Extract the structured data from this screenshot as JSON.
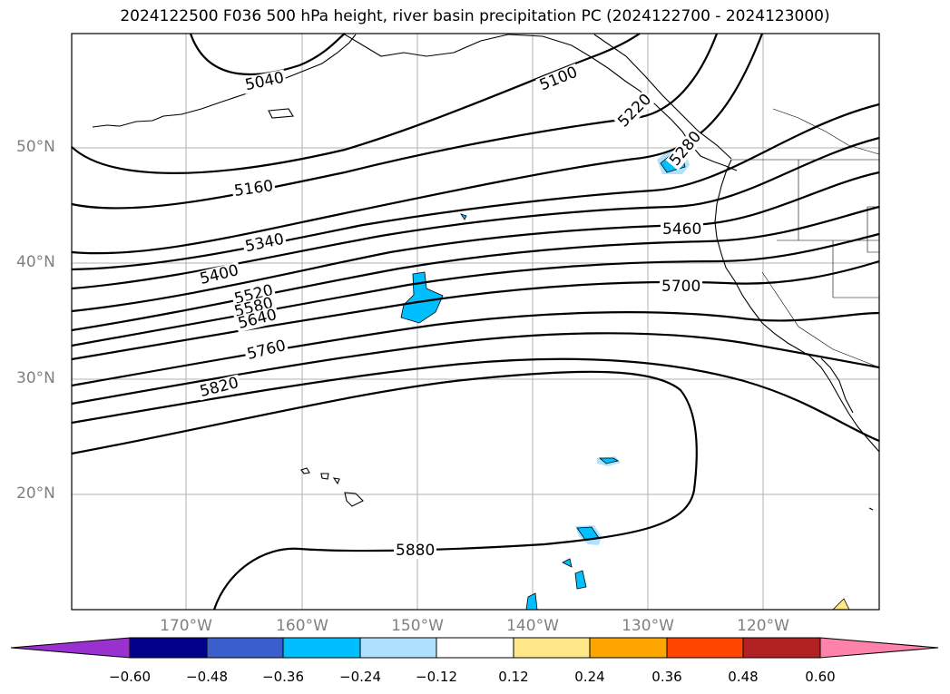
{
  "title": "2024122500 F036 500 hPa height, river basin precipitation PC (2024122700 - 2024123000)",
  "lat_labels": [
    "50°N",
    "40°N",
    "30°N",
    "20°N"
  ],
  "lon_labels": [
    "170°W",
    "160°W",
    "150°W",
    "140°W",
    "130°W",
    "120°W"
  ],
  "contour_labels": [
    "5040",
    "5100",
    "5160",
    "5220",
    "5280",
    "5340",
    "5400",
    "5460",
    "5520",
    "5580",
    "5640",
    "5700",
    "5760",
    "5820",
    "5880"
  ],
  "colorbar": {
    "ticks": [
      "−0.60",
      "−0.48",
      "−0.36",
      "−0.24",
      "−0.12",
      "0.12",
      "0.24",
      "0.36",
      "0.48",
      "0.60"
    ],
    "colors": [
      "#9b30d0",
      "#00008b",
      "#3a5fcd",
      "#00bfff",
      "#b0e2ff",
      "#ffffff",
      "#ffe88a",
      "#ffa500",
      "#ff4500",
      "#b22222",
      "#ff82ab"
    ]
  }
}
